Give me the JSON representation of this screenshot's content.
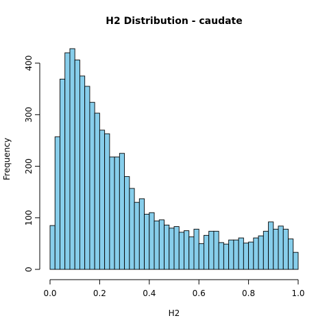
{
  "chart_data": {
    "type": "bar",
    "title": "H2 Distribution - caudate",
    "xlabel": "H2",
    "ylabel": "Frequency",
    "xlim": [
      0,
      1
    ],
    "ylim": [
      0,
      428
    ],
    "xticks": [
      0.0,
      0.2,
      0.4,
      0.6,
      0.8,
      1.0
    ],
    "xtick_labels": [
      "0.0",
      "0.2",
      "0.4",
      "0.6",
      "0.8",
      "1.0"
    ],
    "yticks": [
      0,
      100,
      200,
      300,
      400
    ],
    "ytick_labels": [
      "0",
      "100",
      "200",
      "300",
      "400"
    ],
    "bin_width": 0.02,
    "bin_starts": [
      0.0,
      0.02,
      0.04,
      0.06,
      0.08,
      0.1,
      0.12,
      0.14,
      0.16,
      0.18,
      0.2,
      0.22,
      0.24,
      0.26,
      0.28,
      0.3,
      0.32,
      0.34,
      0.36,
      0.38,
      0.4,
      0.42,
      0.44,
      0.46,
      0.48,
      0.5,
      0.52,
      0.54,
      0.56,
      0.58,
      0.6,
      0.62,
      0.64,
      0.66,
      0.68,
      0.7,
      0.72,
      0.74,
      0.76,
      0.78,
      0.8,
      0.82,
      0.84,
      0.86,
      0.88,
      0.9,
      0.92,
      0.94,
      0.96,
      0.98
    ],
    "values": [
      85,
      257,
      369,
      420,
      428,
      406,
      375,
      355,
      324,
      303,
      270,
      263,
      218,
      218,
      225,
      180,
      157,
      130,
      137,
      107,
      110,
      94,
      96,
      86,
      80,
      83,
      72,
      75,
      63,
      78,
      50,
      66,
      74,
      74,
      52,
      49,
      57,
      57,
      61,
      51,
      53,
      61,
      65,
      74,
      92,
      78,
      84,
      78,
      59,
      33
    ],
    "bar_color": "#87ceeb",
    "grid": false
  }
}
